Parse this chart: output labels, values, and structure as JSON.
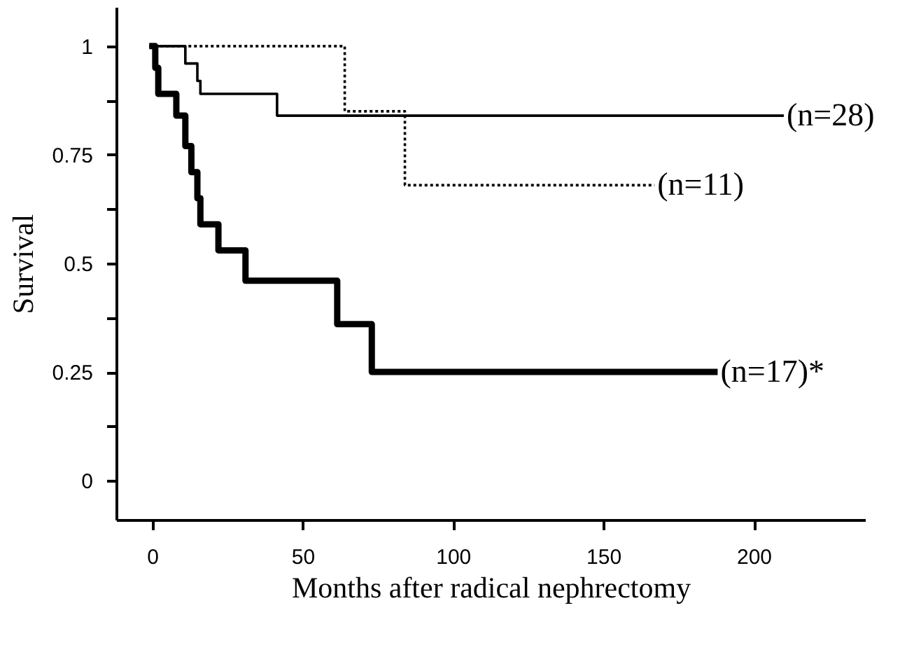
{
  "chart_data": {
    "type": "step",
    "xlabel": "Months after radical nephrectomy",
    "ylabel": "Survival",
    "series": [
      {
        "x": [
          -1,
          11,
          15,
          16,
          41.5,
          210
        ],
        "values": [
          1,
          0.96,
          0.92,
          0.89,
          0.84,
          0.84
        ],
        "color": "#000000",
        "line_style": "solid"
      },
      {
        "x": [
          -1,
          64,
          84,
          167
        ],
        "values": [
          1,
          0.85,
          0.68,
          0.68
        ],
        "color": "#000000",
        "line_style": "dotted"
      },
      {
        "x": [
          -1,
          1,
          2,
          8,
          11,
          13,
          15,
          16,
          22,
          31,
          61.5,
          73,
          188
        ],
        "values": [
          1,
          0.95,
          0.89,
          0.84,
          0.77,
          0.71,
          0.65,
          0.59,
          0.53,
          0.46,
          0.36,
          0.25,
          0.25
        ],
        "color": "#000000",
        "line_style": "solid"
      }
    ],
    "annotations": [
      {
        "text": "(n=28)",
        "x": 210,
        "y": 0.84
      },
      {
        "text": "(n=11)",
        "x": 167,
        "y": 0.68
      },
      {
        "text": "(n=17)*",
        "x": 188,
        "y": 0.25
      }
    ],
    "xlim": [
      -12,
      237
    ],
    "xticks": [
      0,
      50,
      100,
      150,
      200
    ],
    "ylim": [
      -0.09,
      1.09
    ],
    "yticks": [
      0,
      {
        "value": 0.125,
        "label": null
      },
      0.25,
      {
        "value": 0.375,
        "label": null
      },
      0.5,
      {
        "value": 0.625,
        "label": null
      },
      0.75,
      {
        "value": 0.875,
        "label": null
      },
      1
    ],
    "grid": false,
    "legend": false,
    "marker": "none"
  }
}
